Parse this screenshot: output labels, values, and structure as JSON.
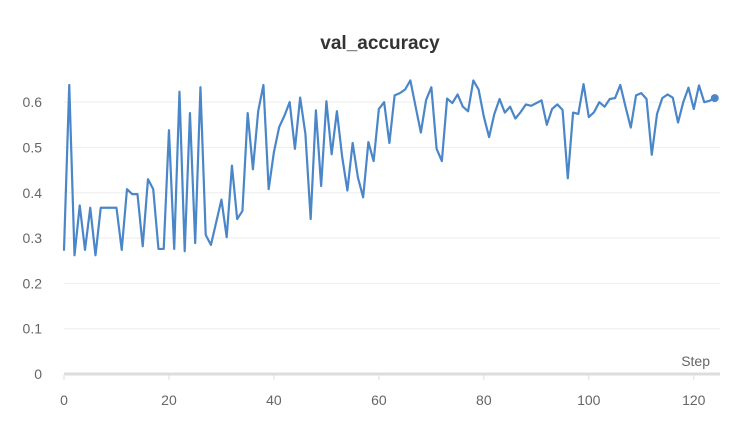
{
  "chart_data": {
    "type": "line",
    "title": "val_accuracy",
    "xlabel": "Step",
    "ylabel": "",
    "xlim": [
      0,
      125
    ],
    "ylim": [
      0,
      0.66
    ],
    "x_ticks": [
      0,
      20,
      40,
      60,
      80,
      100,
      120
    ],
    "x_tick_labels": [
      "0",
      "20",
      "40",
      "60",
      "80",
      "100",
      "120"
    ],
    "y_ticks": [
      0,
      0.1,
      0.2,
      0.3,
      0.4,
      0.5,
      0.6
    ],
    "y_tick_labels": [
      "0",
      "0.1",
      "0.2",
      "0.3",
      "0.4",
      "0.5",
      "0.6"
    ],
    "grid": true,
    "legend": "none",
    "series": [
      {
        "color": "#4a86c8",
        "x": [
          0,
          1,
          2,
          3,
          4,
          5,
          6,
          7,
          8,
          9,
          10,
          11,
          12,
          13,
          14,
          15,
          16,
          17,
          18,
          19,
          20,
          21,
          22,
          23,
          24,
          25,
          26,
          27,
          28,
          29,
          30,
          31,
          32,
          33,
          34,
          35,
          36,
          37,
          38,
          39,
          40,
          41,
          42,
          43,
          44,
          45,
          46,
          47,
          48,
          49,
          50,
          51,
          52,
          53,
          54,
          55,
          56,
          57,
          58,
          59,
          60,
          61,
          62,
          63,
          64,
          65,
          66,
          67,
          68,
          69,
          70,
          71,
          72,
          73,
          74,
          75,
          76,
          77,
          78,
          79,
          80,
          81,
          82,
          83,
          84,
          85,
          86,
          87,
          88,
          89,
          90,
          91,
          92,
          93,
          94,
          95,
          96,
          97,
          98,
          99,
          100,
          101,
          102,
          103,
          104,
          105,
          106,
          107,
          108,
          109,
          110,
          111,
          112,
          113,
          114,
          115,
          116,
          117,
          118,
          119,
          120,
          121,
          122,
          123,
          124
        ],
        "values": [
          0.274,
          0.638,
          0.262,
          0.372,
          0.274,
          0.367,
          0.262,
          0.367,
          0.367,
          0.367,
          0.367,
          0.274,
          0.408,
          0.397,
          0.397,
          0.282,
          0.43,
          0.408,
          0.276,
          0.276,
          0.538,
          0.276,
          0.623,
          0.271,
          0.576,
          0.289,
          0.633,
          0.307,
          0.285,
          0.335,
          0.385,
          0.302,
          0.46,
          0.342,
          0.36,
          0.576,
          0.452,
          0.58,
          0.638,
          0.408,
          0.49,
          0.545,
          0.57,
          0.6,
          0.497,
          0.61,
          0.53,
          0.342,
          0.582,
          0.415,
          0.602,
          0.485,
          0.58,
          0.48,
          0.405,
          0.51,
          0.434,
          0.39,
          0.512,
          0.47,
          0.585,
          0.6,
          0.51,
          0.615,
          0.62,
          0.628,
          0.648,
          0.59,
          0.533,
          0.605,
          0.633,
          0.497,
          0.47,
          0.608,
          0.598,
          0.617,
          0.59,
          0.58,
          0.648,
          0.628,
          0.568,
          0.523,
          0.574,
          0.607,
          0.577,
          0.59,
          0.564,
          0.578,
          0.595,
          0.592,
          0.598,
          0.604,
          0.55,
          0.585,
          0.595,
          0.583,
          0.432,
          0.577,
          0.574,
          0.64,
          0.567,
          0.578,
          0.6,
          0.59,
          0.607,
          0.609,
          0.638,
          0.59,
          0.544,
          0.615,
          0.62,
          0.607,
          0.484,
          0.574,
          0.609,
          0.617,
          0.61,
          0.555,
          0.6,
          0.632,
          0.585,
          0.637,
          0.6,
          0.603,
          0.609
        ]
      }
    ]
  }
}
